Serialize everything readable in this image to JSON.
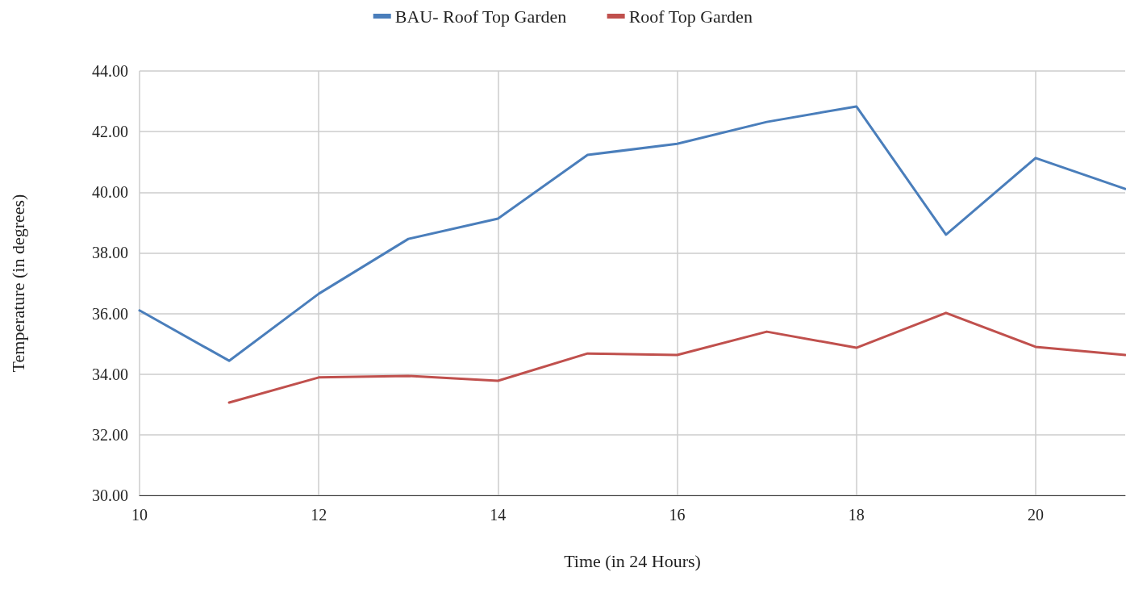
{
  "chart_data": {
    "type": "line",
    "xlabel": "Time (in 24 Hours)",
    "ylabel": "Temperature (in degrees)",
    "x": [
      10,
      11,
      12,
      13,
      14,
      15,
      16,
      17,
      18,
      19,
      20,
      21
    ],
    "series": [
      {
        "name": "BAU- Roof Top Garden",
        "color": "#4a7ebb",
        "values": [
          36.1,
          34.44,
          36.65,
          38.46,
          39.13,
          41.23,
          41.6,
          42.32,
          42.83,
          38.6,
          41.13,
          40.11
        ]
      },
      {
        "name": "Roof Top Garden",
        "color": "#c0504d",
        "values": [
          null,
          33.06,
          33.89,
          33.94,
          33.78,
          34.68,
          34.63,
          35.4,
          34.87,
          36.02,
          34.9,
          34.63
        ]
      }
    ],
    "xlim": [
      10,
      21
    ],
    "xticks": [
      10,
      12,
      14,
      16,
      18,
      20
    ],
    "ylim": [
      30,
      44
    ],
    "yticks": [
      {
        "value": 30,
        "label": "30.00"
      },
      {
        "value": 32,
        "label": "32.00"
      },
      {
        "value": 34,
        "label": "34.00"
      },
      {
        "value": 36,
        "label": "36.00"
      },
      {
        "value": 38,
        "label": "38.00"
      },
      {
        "value": 40,
        "label": "40.00"
      },
      {
        "value": 42,
        "label": "42.00"
      },
      {
        "value": 44,
        "label": "44.00"
      }
    ],
    "grid": true,
    "legend": "top",
    "marker": "none",
    "line_style": "solid"
  }
}
